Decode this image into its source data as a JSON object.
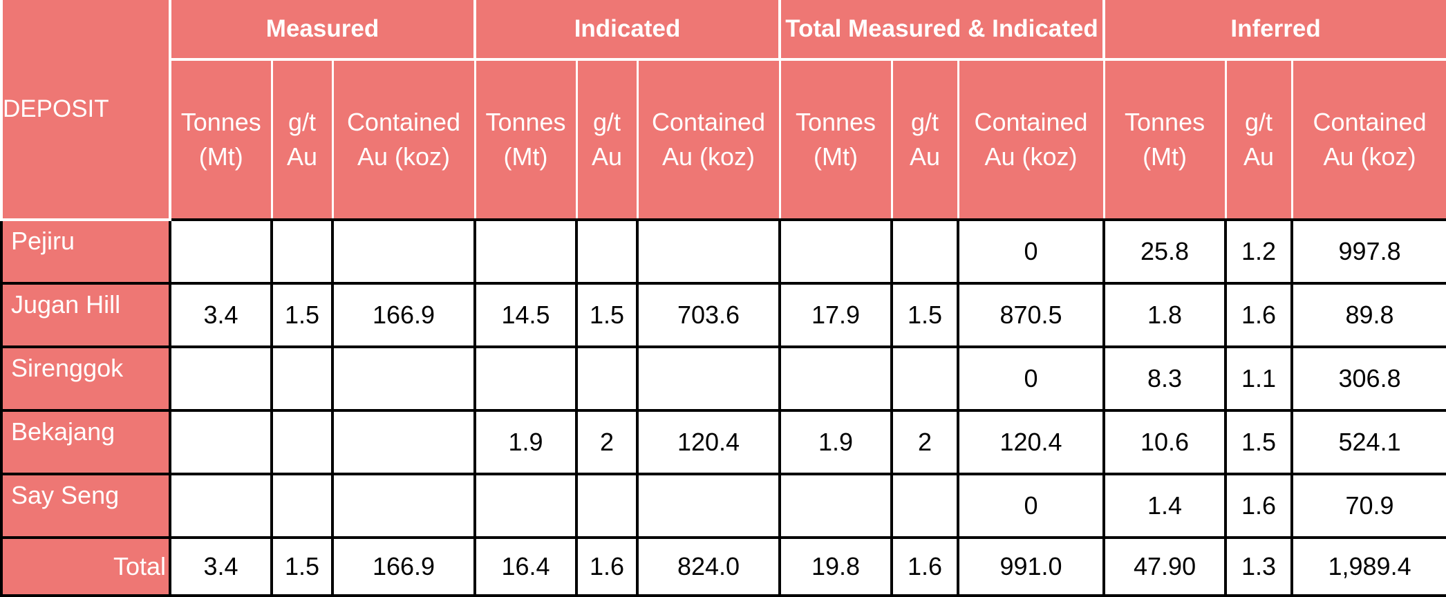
{
  "colors": {
    "header_bg": "#ee7774",
    "header_text": "#ffffff",
    "grid": "#000000"
  },
  "table": {
    "corner_label": "DEPOSIT",
    "groups": [
      "Measured",
      "Indicated",
      "Total Measured & Indicated",
      "Inferred"
    ],
    "subheaders": [
      [
        "Tonnes",
        "(Mt)"
      ],
      [
        "g/t",
        "Au"
      ],
      [
        "Contained",
        "Au (koz)"
      ],
      [
        "Tonnes",
        "(Mt)"
      ],
      [
        "g/t",
        "Au"
      ],
      [
        "Contained",
        "Au (koz)"
      ],
      [
        "Tonnes",
        "(Mt)"
      ],
      [
        "g/t",
        "Au"
      ],
      [
        "Contained",
        "Au (koz)"
      ],
      [
        "Tonnes",
        "(Mt)"
      ],
      [
        "g/t",
        "Au"
      ],
      [
        "Contained",
        "Au (koz)"
      ]
    ],
    "rows": [
      {
        "deposit": "Pejiru",
        "values": [
          "",
          "",
          "",
          "",
          "",
          "",
          "",
          "",
          "0",
          "25.8",
          "1.2",
          "997.8"
        ]
      },
      {
        "deposit": "Jugan Hill",
        "values": [
          "3.4",
          "1.5",
          "166.9",
          "14.5",
          "1.5",
          "703.6",
          "17.9",
          "1.5",
          "870.5",
          "1.8",
          "1.6",
          "89.8"
        ]
      },
      {
        "deposit": "Sirenggok",
        "values": [
          "",
          "",
          "",
          "",
          "",
          "",
          "",
          "",
          "0",
          "8.3",
          "1.1",
          "306.8"
        ]
      },
      {
        "deposit": "Bekajang",
        "values": [
          "",
          "",
          "",
          "1.9",
          "2",
          "120.4",
          "1.9",
          "2",
          "120.4",
          "10.6",
          "1.5",
          "524.1"
        ]
      },
      {
        "deposit": "Say Seng",
        "values": [
          "",
          "",
          "",
          "",
          "",
          "",
          "",
          "",
          "0",
          "1.4",
          "1.6",
          "70.9"
        ]
      }
    ],
    "total": {
      "label": "Total",
      "values": [
        "3.4",
        "1.5",
        "166.9",
        "16.4",
        "1.6",
        "824.0",
        "19.8",
        "1.6",
        "991.0",
        "47.90",
        "1.3",
        "1,989.4"
      ]
    }
  }
}
